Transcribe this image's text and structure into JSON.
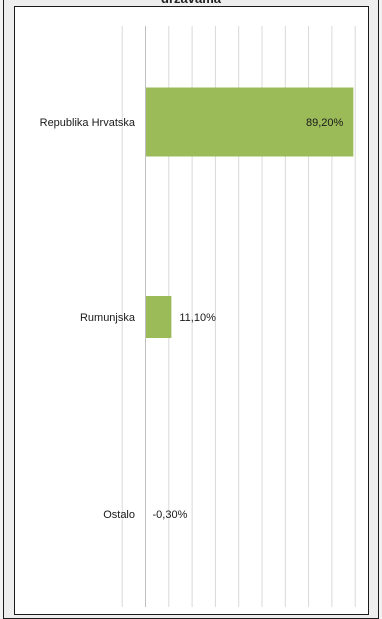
{
  "chart_data": {
    "type": "bar",
    "orientation": "horizontal",
    "title": "drzavama",
    "categories": [
      "Republika Hrvatska",
      "Rumunjska",
      "Ostalo"
    ],
    "values": [
      89.2,
      11.1,
      -0.3
    ],
    "value_labels": [
      "89,20%",
      "11,10%",
      "-0,30%"
    ],
    "xlim": [
      -20,
      100
    ],
    "x_tick_step": 10,
    "grid": true,
    "legend": "none",
    "bar_color": "#9bbb59",
    "grid_color": "#d9d9d9"
  }
}
